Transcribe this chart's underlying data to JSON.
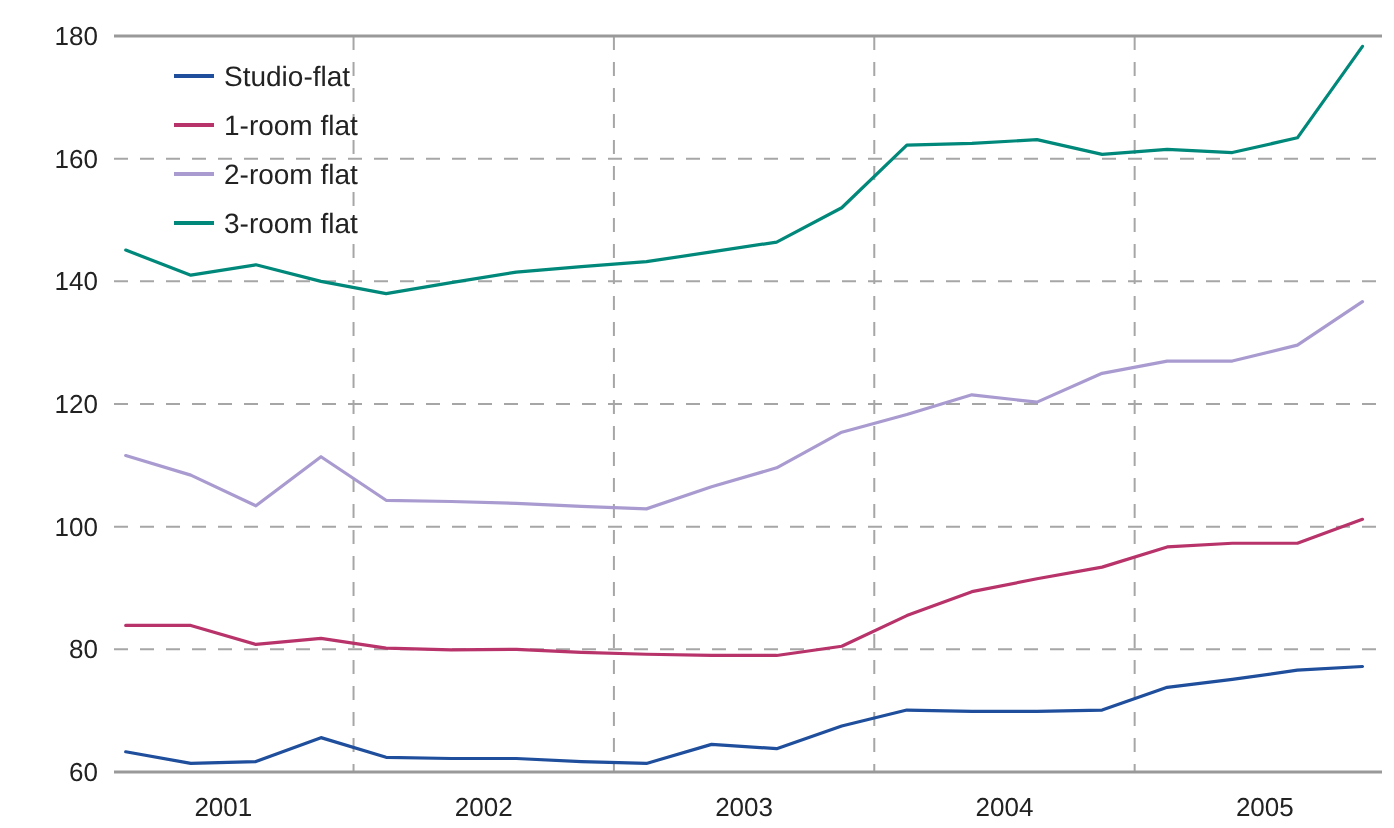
{
  "chart_data": {
    "type": "line",
    "x": [
      2001.125,
      2001.375,
      2001.625,
      2001.875,
      2002.125,
      2002.375,
      2002.625,
      2002.875,
      2003.125,
      2003.375,
      2003.625,
      2003.875,
      2004.125,
      2004.375,
      2004.625,
      2004.875,
      2005.125,
      2005.375,
      2005.625,
      2005.875
    ],
    "xlim": [
      2001.08,
      2005.95
    ],
    "xticks": [
      {
        "value": 2001.5,
        "label": "2001"
      },
      {
        "value": 2002.5,
        "label": "2002"
      },
      {
        "value": 2003.5,
        "label": "2003"
      },
      {
        "value": 2004.5,
        "label": "2004"
      },
      {
        "value": 2005.5,
        "label": "2005"
      }
    ],
    "ylim": [
      60,
      180
    ],
    "yticks": [
      60,
      80,
      100,
      120,
      140,
      160,
      180
    ],
    "grid": "y",
    "legend": "top left",
    "line_style": "solid",
    "ref_lines": [
      {
        "axis": "x",
        "value": 2002,
        "line_style": "dashed",
        "color": "#a6a6a6"
      },
      {
        "axis": "x",
        "value": 2003,
        "line_style": "dashed",
        "color": "#a6a6a6"
      },
      {
        "axis": "x",
        "value": 2004,
        "line_style": "dashed",
        "color": "#a6a6a6"
      },
      {
        "axis": "x",
        "value": 2005,
        "line_style": "dashed",
        "color": "#a6a6a6"
      }
    ],
    "series": [
      {
        "name": "Studio-flat",
        "color": "#1f4e9c",
        "values": [
          63.3,
          61.4,
          61.7,
          65.6,
          62.4,
          62.2,
          62.2,
          61.7,
          61.4,
          64.5,
          63.8,
          67.5,
          70.1,
          69.9,
          69.9,
          70.1,
          73.8,
          75.1,
          76.6,
          77.2
        ]
      },
      {
        "name": "1-room flat",
        "color": "#b8336a",
        "values": [
          83.9,
          83.9,
          80.8,
          81.8,
          80.2,
          79.9,
          80,
          79.5,
          79.2,
          79,
          79,
          80.5,
          85.5,
          89.4,
          91.5,
          93.4,
          96.7,
          97.3,
          97.3,
          101.2
        ]
      },
      {
        "name": "2-room flat",
        "color": "#a99bd0",
        "values": [
          111.6,
          108.4,
          103.4,
          111.4,
          104.3,
          104.1,
          103.8,
          103.3,
          102.9,
          106.5,
          109.6,
          115.4,
          118.3,
          121.5,
          120.3,
          125,
          127,
          127,
          129.6,
          136.7
        ]
      },
      {
        "name": "3-room flat",
        "color": "#00887a",
        "values": [
          145.1,
          141,
          142.7,
          140,
          138,
          139.8,
          141.5,
          142.4,
          143.2,
          144.8,
          146.4,
          152,
          162.2,
          162.5,
          163.1,
          160.7,
          161.5,
          161,
          163.4,
          178.3
        ]
      }
    ]
  }
}
